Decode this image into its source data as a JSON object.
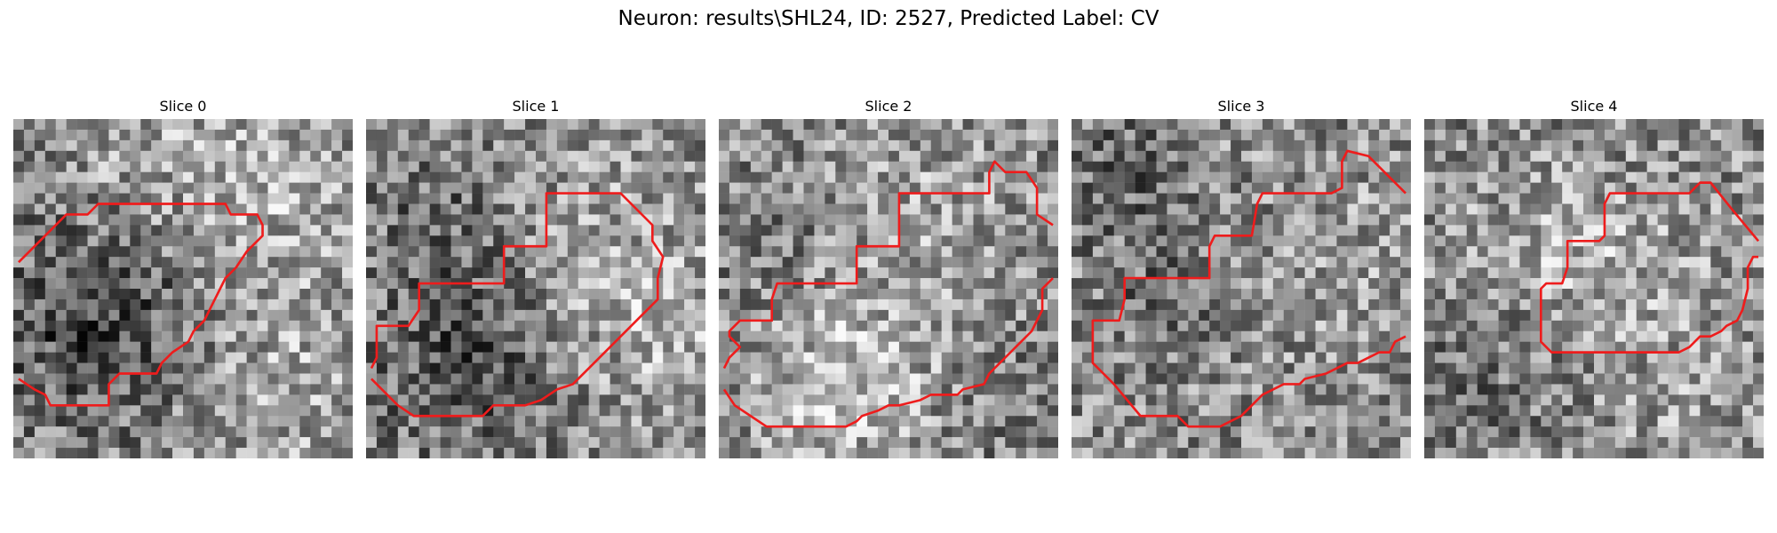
{
  "figure": {
    "title": "Neuron: results\\SHL24, ID: 2527, Predicted Label: CV"
  },
  "contour_color": "#ee1c1c",
  "slices": [
    {
      "title": "Slice 0"
    },
    {
      "title": "Slice 1"
    },
    {
      "title": "Slice 2"
    },
    {
      "title": "Slice 3"
    },
    {
      "title": "Slice 4"
    }
  ]
}
